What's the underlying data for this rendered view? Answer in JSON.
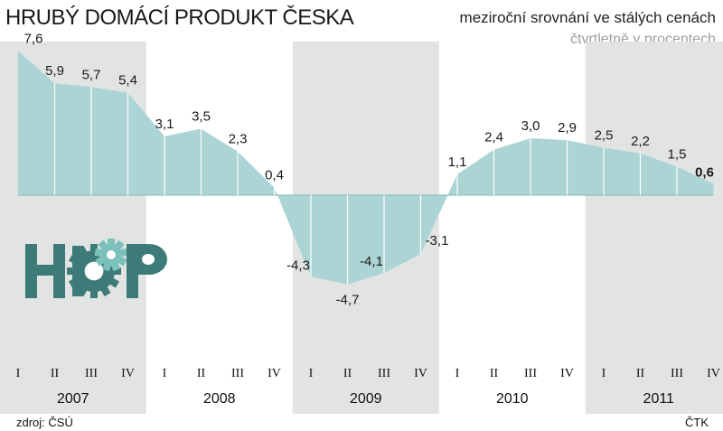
{
  "header": {
    "title": "HRUBÝ DOMÁCÍ PRODUKT ČESKA",
    "subtitle": "meziroční srovnání ve stálých cenách",
    "subtitle2": "čtvrtletně v procentech"
  },
  "footer": {
    "source": "zdroj: ČSÚ",
    "agency": "ČTK"
  },
  "logo": {
    "text": "HDP"
  },
  "colors": {
    "area": "#acd4d4",
    "area_stroke": "#7fb6b6",
    "shade": "#e2e4e4",
    "logo_dark": "#3c7b78",
    "logo_light": "#7cc0bc"
  },
  "chart_data": {
    "type": "area",
    "title": "HRUBÝ DOMÁCÍ PRODUKT ČESKA",
    "subtitle": "meziroční srovnání ve stálých cenách; čtvrtletně v procentech",
    "quarters": [
      "I",
      "II",
      "III",
      "IV",
      "I",
      "II",
      "III",
      "IV",
      "I",
      "II",
      "III",
      "IV",
      "I",
      "II",
      "III",
      "IV",
      "I",
      "II",
      "III",
      "IV"
    ],
    "years": [
      "2007",
      "2008",
      "2009",
      "2010",
      "2011"
    ],
    "shaded_years": [
      "2007",
      "2009",
      "2011"
    ],
    "values": [
      7.6,
      5.9,
      5.7,
      5.4,
      3.1,
      3.5,
      2.3,
      0.4,
      -4.3,
      -4.7,
      -4.1,
      -3.1,
      1.1,
      2.4,
      3.0,
      2.9,
      2.5,
      2.2,
      1.5,
      0.6
    ],
    "labels": [
      "7,6",
      "5,9",
      "5,7",
      "5,4",
      "3,1",
      "3,5",
      "2,3",
      "0,4",
      "-4,3",
      "-4,7",
      "-4,1",
      "-3,1",
      "1,1",
      "2,4",
      "3,0",
      "2,9",
      "2,5",
      "2,2",
      "1,5",
      "0,6"
    ],
    "highlight_last": true,
    "ylim": [
      -6.5,
      8.4
    ],
    "grid": false
  }
}
